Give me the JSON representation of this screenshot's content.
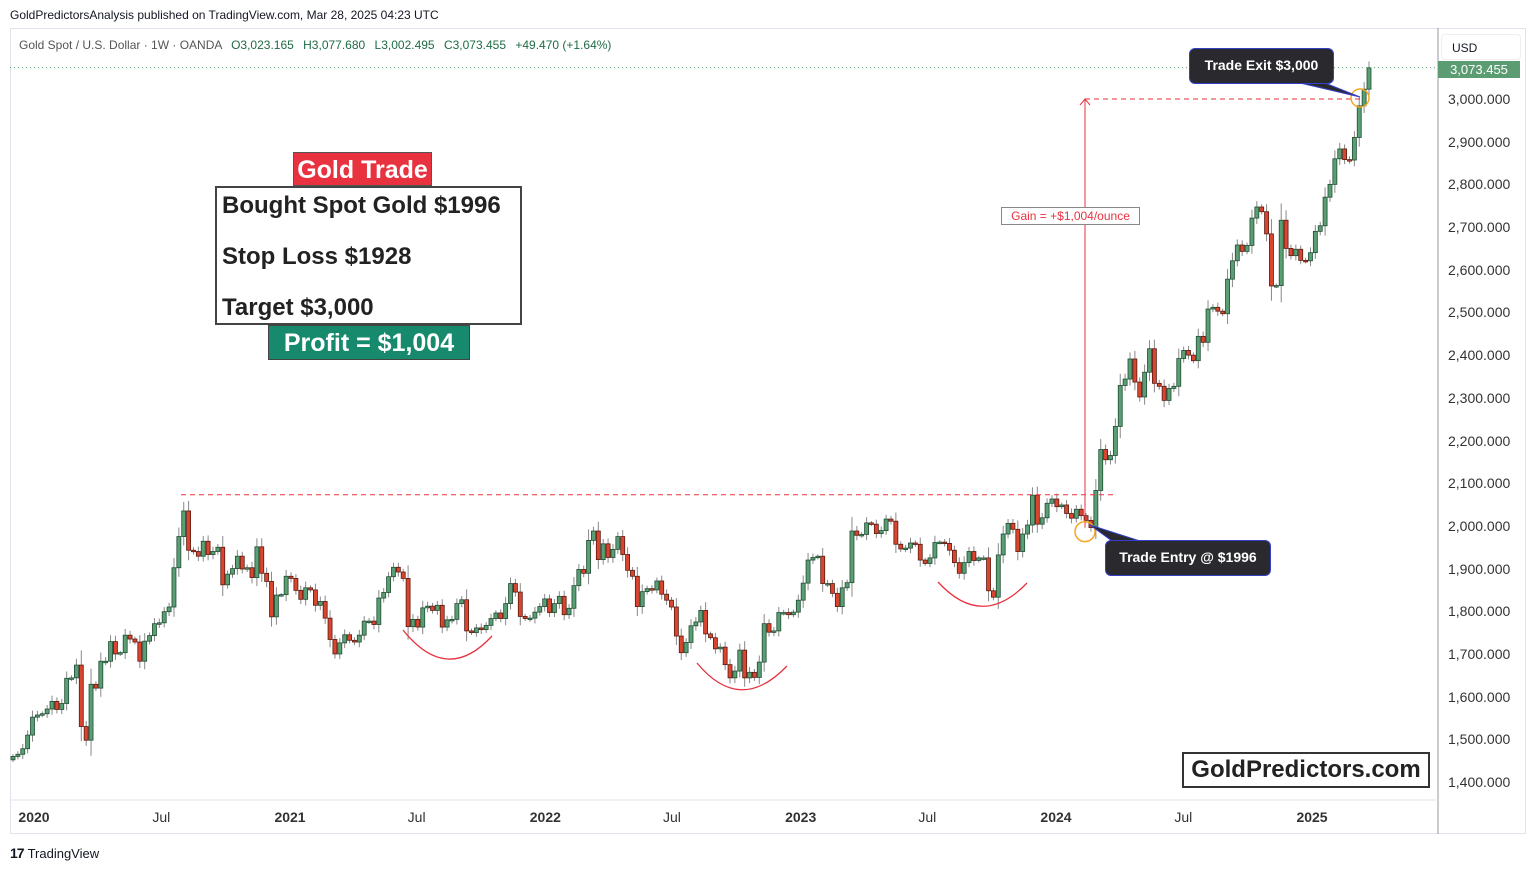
{
  "publisher_line": "GoldPredictorsAnalysis published on TradingView.com, Mar 28, 2025 04:23 UTC",
  "legend": {
    "symbol": "Gold Spot / U.S. Dollar · 1W · OANDA",
    "open": "O3,023.165",
    "high": "H3,077.680",
    "low": "L3,002.495",
    "close": "C3,073.455",
    "change": "+49.470 (+1.64%)"
  },
  "currency": "USD",
  "last_price_label": "3,073.455",
  "colors": {
    "up": "#5a9e74",
    "down": "#d9452f",
    "annotation_red": "#e8323f",
    "profit_teal": "#17896c",
    "last_price": "#5b9c73"
  },
  "trade_box": {
    "title": "Gold Trade",
    "lines": [
      "Bought Spot Gold $1996",
      "Stop Loss $1928",
      "Target $3,000"
    ],
    "profit": "Profit = $1,004"
  },
  "annotations": {
    "gain": "Gain = +$1,004/ounce",
    "trade_exit": "Trade Exit $3,000",
    "trade_entry": "Trade Entry @ $1996",
    "brand": "GoldPredictors.com",
    "resistance_level": 2073,
    "entry_price": 1996,
    "exit_price": 3000
  },
  "footer": {
    "logo_text": "TradingView"
  },
  "chart_data": {
    "type": "candlestick",
    "interval": "1W",
    "start_week": "2019-12-02",
    "ylim": [
      1400,
      3000
    ],
    "y_ticks": [
      "3,000.000",
      "2,900.000",
      "2,800.000",
      "2,700.000",
      "2,600.000",
      "2,500.000",
      "2,400.000",
      "2,300.000",
      "2,200.000",
      "2,100.000",
      "2,000.000",
      "1,900.000",
      "1,800.000",
      "1,700.000",
      "1,600.000",
      "1,500.000",
      "1,400.000"
    ],
    "y_tick_values": [
      3000,
      2900,
      2800,
      2700,
      2600,
      2500,
      2400,
      2300,
      2200,
      2100,
      2000,
      1900,
      1800,
      1700,
      1600,
      1500,
      1400
    ],
    "x_ticks": [
      {
        "label": "2020",
        "date": "2020-01-01",
        "year": true
      },
      {
        "label": "Jul",
        "date": "2020-07-01"
      },
      {
        "label": "2021",
        "date": "2021-01-01",
        "year": true
      },
      {
        "label": "Jul",
        "date": "2021-07-01"
      },
      {
        "label": "2022",
        "date": "2022-01-01",
        "year": true
      },
      {
        "label": "Jul",
        "date": "2022-07-01"
      },
      {
        "label": "2023",
        "date": "2023-01-01",
        "year": true
      },
      {
        "label": "Jul",
        "date": "2023-07-01"
      },
      {
        "label": "2024",
        "date": "2024-01-01",
        "year": true
      },
      {
        "label": "Jul",
        "date": "2024-07-01"
      },
      {
        "label": "2025",
        "date": "2025-01-01",
        "year": true
      }
    ],
    "closes": [
      1460,
      1465,
      1478,
      1510,
      1552,
      1557,
      1560,
      1571,
      1589,
      1570,
      1584,
      1643,
      1644,
      1674,
      1530,
      1498,
      1629,
      1620,
      1683,
      1683,
      1729,
      1700,
      1703,
      1744,
      1735,
      1728,
      1683,
      1730,
      1743,
      1771,
      1773,
      1799,
      1810,
      1902,
      1975,
      2035,
      1943,
      1940,
      1929,
      1964,
      1933,
      1940,
      1950,
      1862,
      1887,
      1900,
      1929,
      1899,
      1902,
      1879,
      1951,
      1889,
      1870,
      1787,
      1838,
      1839,
      1882,
      1877,
      1849,
      1828,
      1855,
      1850,
      1814,
      1823,
      1784,
      1734,
      1700,
      1726,
      1745,
      1732,
      1728,
      1744,
      1777,
      1777,
      1769,
      1831,
      1844,
      1881,
      1903,
      1892,
      1877,
      1764,
      1781,
      1763,
      1808,
      1812,
      1802,
      1814,
      1763,
      1780,
      1781,
      1818,
      1827,
      1754,
      1750,
      1761,
      1757,
      1767,
      1783,
      1796,
      1783,
      1818,
      1865,
      1845,
      1788,
      1783,
      1784,
      1798,
      1811,
      1829,
      1797,
      1818,
      1835,
      1792,
      1807,
      1860,
      1898,
      1889,
      1966,
      1988,
      1921,
      1958,
      1926,
      1945,
      1975,
      1933,
      1896,
      1882,
      1811,
      1846,
      1853,
      1850,
      1871,
      1840,
      1826,
      1810,
      1742,
      1703,
      1727,
      1766,
      1775,
      1802,
      1747,
      1738,
      1712,
      1716,
      1675,
      1644,
      1660,
      1709,
      1644,
      1657,
      1645,
      1681,
      1771,
      1751,
      1754,
      1797,
      1797,
      1792,
      1798,
      1826,
      1866,
      1920,
      1926,
      1929,
      1865,
      1865,
      1842,
      1811,
      1855,
      1867,
      1988,
      1978,
      1980,
      2007,
      2004,
      1982,
      1989,
      2016,
      2011,
      1957,
      1946,
      1948,
      1960,
      1957,
      1920,
      1912,
      1925,
      1961,
      1962,
      1959,
      1943,
      1914,
      1889,
      1914,
      1940,
      1919,
      1925,
      1925,
      1848,
      1833,
      1932,
      1981,
      2006,
      1992,
      1940,
      1981,
      2002,
      2072,
      2004,
      2019,
      2053,
      2063,
      2045,
      2049,
      2029,
      2018,
      2039,
      2024,
      2013,
      1996,
      2083,
      2179,
      2155,
      2165,
      2233,
      2329,
      2344,
      2391,
      2337,
      2302,
      2360,
      2415,
      2334,
      2327,
      2294,
      2322,
      2327,
      2392,
      2411,
      2400,
      2387,
      2444,
      2430,
      2508,
      2512,
      2503,
      2497,
      2578,
      2621,
      2658,
      2643,
      2657,
      2721,
      2747,
      2736,
      2684,
      2562,
      2563,
      2716,
      2650,
      2633,
      2648,
      2622,
      2621,
      2640,
      2690,
      2703,
      2770,
      2800,
      2860,
      2883,
      2858,
      2857,
      2910,
      2984,
      3023,
      3073
    ]
  }
}
